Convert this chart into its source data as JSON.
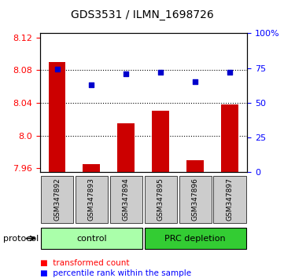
{
  "title": "GDS3531 / ILMN_1698726",
  "samples": [
    "GSM347892",
    "GSM347893",
    "GSM347894",
    "GSM347895",
    "GSM347896",
    "GSM347897"
  ],
  "bar_values": [
    8.09,
    7.965,
    8.015,
    8.03,
    7.97,
    8.038
  ],
  "dot_values": [
    74,
    63,
    71,
    72,
    65,
    72
  ],
  "ylim_left": [
    7.955,
    8.125
  ],
  "ylim_right": [
    0,
    100
  ],
  "yticks_left": [
    7.96,
    8.0,
    8.04,
    8.08,
    8.12
  ],
  "yticks_right": [
    0,
    25,
    50,
    75,
    100
  ],
  "ytick_labels_right": [
    "0",
    "25",
    "50",
    "75",
    "100%"
  ],
  "bar_color": "#cc0000",
  "dot_color": "#0000cc",
  "baseline": 7.955,
  "groups": [
    {
      "label": "control",
      "start": 0,
      "end": 3,
      "color": "#aaffaa"
    },
    {
      "label": "PRC depletion",
      "start": 3,
      "end": 6,
      "color": "#33cc33"
    }
  ],
  "protocol_label": "protocol",
  "legend_bar_label": "transformed count",
  "legend_dot_label": "percentile rank within the sample",
  "plot_bg_color": "#ffffff",
  "sample_box_color": "#cccccc"
}
